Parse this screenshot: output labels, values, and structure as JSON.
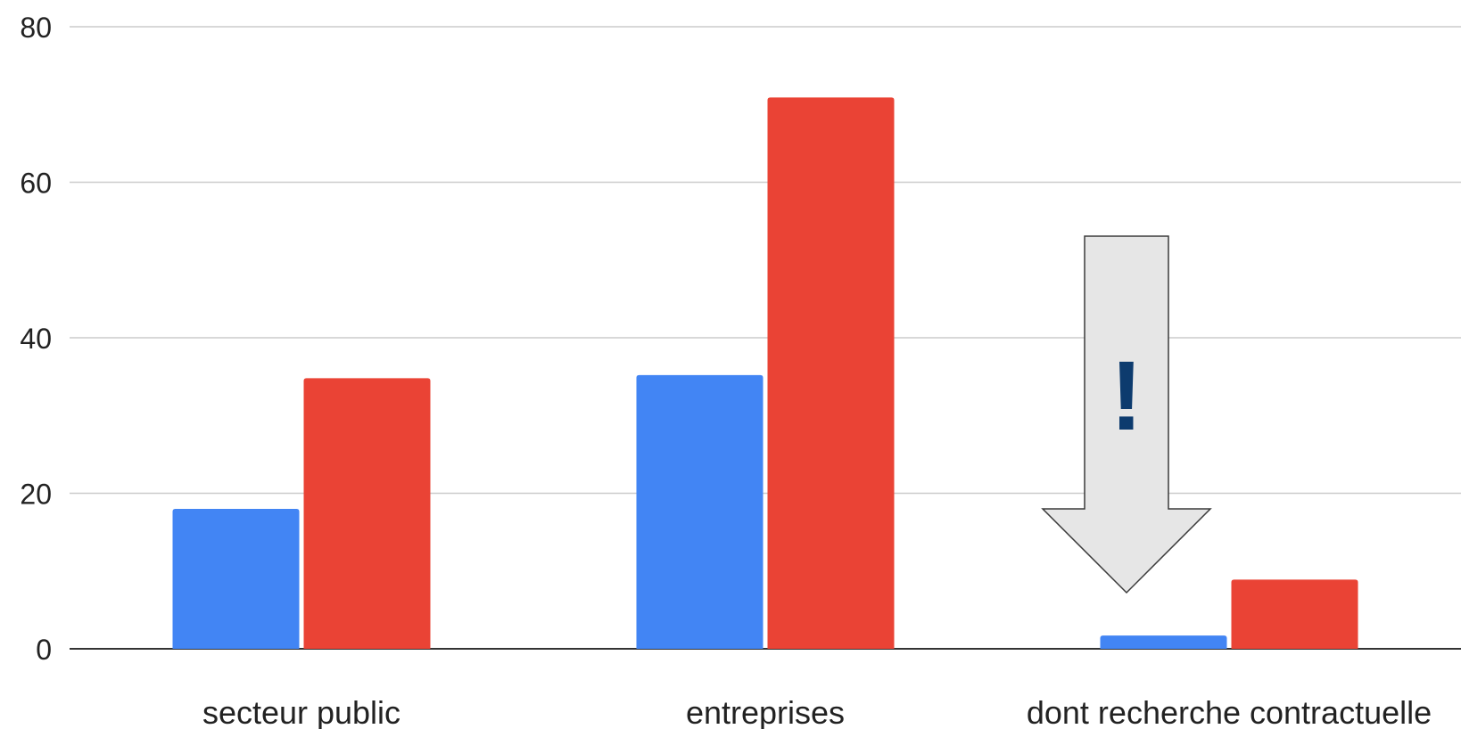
{
  "chart_data": {
    "type": "bar",
    "categories": [
      "secteur public",
      "entreprises",
      "dont recherche contractuelle"
    ],
    "series": [
      {
        "values": [
          18,
          35.2,
          1.7
        ],
        "color": "#4285f4"
      },
      {
        "values": [
          34.8,
          70.9,
          8.9
        ],
        "color": "#ea4335"
      }
    ],
    "ylim": [
      0,
      80
    ],
    "yticks": [
      "0",
      "20",
      "40",
      "60",
      "80"
    ],
    "title": "",
    "xlabel": "",
    "ylabel": "",
    "grid": true,
    "legend": "none",
    "annotations": [
      {
        "type": "down-arrow",
        "text": "!",
        "target_category": "dont recherche contractuelle",
        "fill": "#e6e6e6",
        "text_color": "#0d3b6e"
      }
    ]
  },
  "colors": {
    "gridline": "#cccccc",
    "baseline": "#333333"
  }
}
